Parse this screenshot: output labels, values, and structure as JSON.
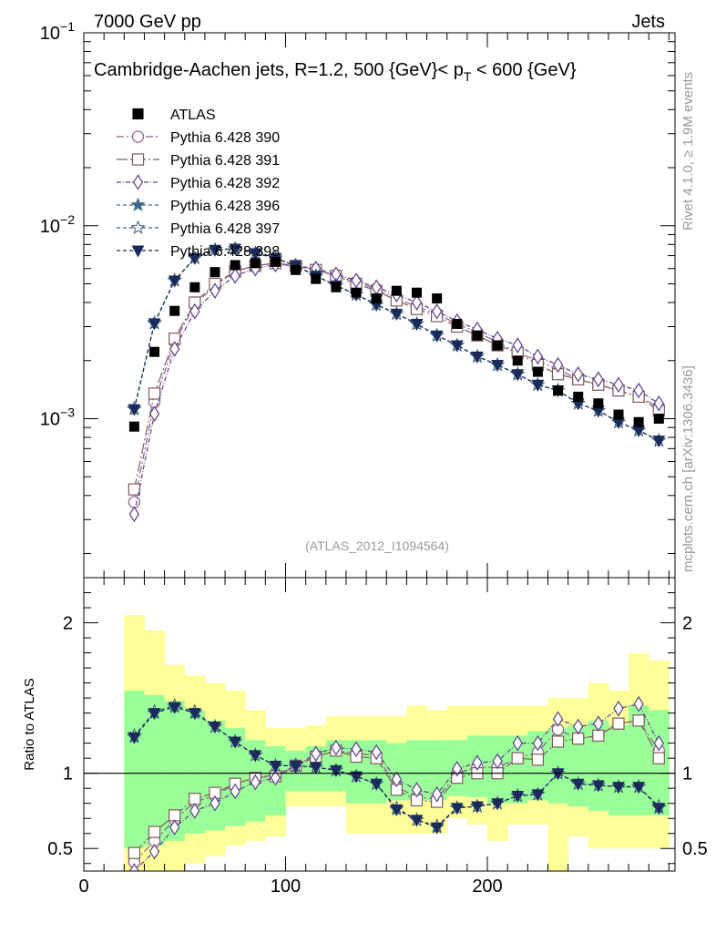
{
  "header": {
    "left": "7000 GeV pp",
    "right": "Jets"
  },
  "side_labels": {
    "rivet": "Rivet 4.1.0, ≥ 1.9M events",
    "mcplots": "mcplots.cern.ch [arXiv:1306.3436]"
  },
  "chart_data": {
    "type": "scatter",
    "title": "Cambridge-Aachen jets, R=1.2, 500 {GeV}< p_T < 600 {GeV}",
    "title_main": "Cambridge-Aachen jets, R=1.2, 500 {GeV}< p",
    "title_sub": "T",
    "title_tail": " < 600 {GeV}",
    "analysis_id": "(ATLAS_2012_I1094564)",
    "xlabel": "",
    "xlim": [
      0,
      293
    ],
    "xticks": [
      0,
      100,
      200
    ],
    "main": {
      "yscale": "log",
      "ylim": [
        0.00015,
        0.1
      ],
      "ytick_labels": [
        {
          "value": 0.1,
          "base": "10",
          "exp": "−1"
        },
        {
          "value": 0.01,
          "base": "10",
          "exp": "−2"
        },
        {
          "value": 0.001,
          "base": "10",
          "exp": "−3"
        }
      ]
    },
    "ratio": {
      "ylabel": "Ratio to ATLAS",
      "ylim": [
        0.35,
        2.3
      ],
      "yticks": [
        0.5,
        1,
        2
      ],
      "ytick_labels": [
        "0.5",
        "1",
        "2"
      ],
      "band_edges": [
        20,
        30,
        40,
        50,
        60,
        70,
        80,
        90,
        100,
        110,
        120,
        130,
        140,
        150,
        160,
        170,
        180,
        190,
        200,
        210,
        220,
        230,
        240,
        250,
        260,
        270,
        280,
        290
      ],
      "band_yellow_lo": [
        0.3,
        0.3,
        0.33,
        0.4,
        0.45,
        0.52,
        0.55,
        0.58,
        0.78,
        0.78,
        0.78,
        0.6,
        0.6,
        0.6,
        0.6,
        0.6,
        0.7,
        0.66,
        0.55,
        0.66,
        0.66,
        0.3,
        0.58,
        0.5,
        0.5,
        0.5,
        0.5
      ],
      "band_yellow_hi": [
        2.05,
        1.95,
        1.72,
        1.65,
        1.6,
        1.55,
        1.42,
        1.3,
        1.3,
        1.32,
        1.38,
        1.38,
        1.38,
        1.38,
        1.45,
        1.42,
        1.45,
        1.45,
        1.45,
        1.45,
        1.45,
        1.5,
        1.5,
        1.6,
        1.55,
        1.8,
        1.75
      ],
      "band_green_lo": [
        0.5,
        0.52,
        0.55,
        0.6,
        0.62,
        0.65,
        0.68,
        0.72,
        0.88,
        0.88,
        0.88,
        0.8,
        0.8,
        0.82,
        0.82,
        0.82,
        0.85,
        0.84,
        0.8,
        0.8,
        0.82,
        0.8,
        0.78,
        0.75,
        0.72,
        0.72,
        0.72
      ],
      "band_green_hi": [
        1.55,
        1.52,
        1.48,
        1.42,
        1.35,
        1.3,
        1.22,
        1.18,
        1.15,
        1.18,
        1.22,
        1.22,
        1.22,
        1.2,
        1.22,
        1.22,
        1.22,
        1.25,
        1.25,
        1.25,
        1.28,
        1.3,
        1.32,
        1.35,
        1.32,
        1.45,
        1.42
      ]
    },
    "x": [
      25,
      35,
      45,
      55,
      65,
      75,
      85,
      95,
      105,
      115,
      125,
      135,
      145,
      155,
      165,
      175,
      185,
      195,
      205,
      215,
      225,
      235,
      245,
      255,
      265,
      275,
      285
    ],
    "data": {
      "name": "ATLAS",
      "values": [
        0.00091,
        0.00222,
        0.00362,
        0.0048,
        0.00575,
        0.00625,
        0.0064,
        0.0065,
        0.0059,
        0.0053,
        0.0048,
        0.0045,
        0.0042,
        0.0046,
        0.0045,
        0.0042,
        0.0031,
        0.0027,
        0.0024,
        0.002,
        0.00175,
        0.0014,
        0.0013,
        0.0012,
        0.00105,
        0.00096,
        0.001
      ]
    },
    "series": [
      {
        "name": "Pythia 6.428 390",
        "marker": "circle",
        "color": "#8a5a8c",
        "dash": "8,3,2,3",
        "values": [
          0.00037,
          0.00122,
          0.0025,
          0.0039,
          0.0049,
          0.0058,
          0.0062,
          0.0064,
          0.0062,
          0.0059,
          0.0055,
          0.0051,
          0.0047,
          0.0042,
          0.0038,
          0.0035,
          0.0031,
          0.0028,
          0.0025,
          0.0022,
          0.002,
          0.0018,
          0.0016,
          0.0015,
          0.0014,
          0.0013,
          0.00115
        ],
        "ratio": [
          0.41,
          0.55,
          0.69,
          0.81,
          0.85,
          0.93,
          0.97,
          0.99,
          1.05,
          1.11,
          1.15,
          1.13,
          1.12,
          0.91,
          0.84,
          0.83,
          1.0,
          1.04,
          1.04,
          1.1,
          1.14,
          1.29,
          1.23,
          1.25,
          1.33,
          1.35,
          1.15
        ]
      },
      {
        "name": "Pythia 6.428 391",
        "marker": "square",
        "color": "#7e5a5a",
        "dash": "12,3,2,3",
        "values": [
          0.00043,
          0.00135,
          0.0026,
          0.004,
          0.005,
          0.0058,
          0.0062,
          0.0064,
          0.0062,
          0.0059,
          0.0055,
          0.005,
          0.0046,
          0.0041,
          0.0037,
          0.0034,
          0.003,
          0.0027,
          0.0024,
          0.0022,
          0.0019,
          0.0017,
          0.0016,
          0.0015,
          0.0014,
          0.0013,
          0.0011
        ],
        "ratio": [
          0.47,
          0.61,
          0.72,
          0.83,
          0.87,
          0.93,
          0.97,
          0.98,
          1.05,
          1.11,
          1.15,
          1.11,
          1.1,
          0.89,
          0.82,
          0.81,
          0.97,
          1.0,
          1.0,
          1.1,
          1.09,
          1.21,
          1.23,
          1.25,
          1.33,
          1.35,
          1.1
        ]
      },
      {
        "name": "Pythia 6.428 392",
        "marker": "diamond",
        "color": "#5a3e8c",
        "dash": "5,2,1,2",
        "values": [
          0.00032,
          0.00106,
          0.0023,
          0.0036,
          0.0046,
          0.0055,
          0.006,
          0.0063,
          0.0062,
          0.006,
          0.0056,
          0.0052,
          0.0048,
          0.0044,
          0.004,
          0.0036,
          0.0032,
          0.0029,
          0.0026,
          0.0024,
          0.0021,
          0.0019,
          0.0017,
          0.0016,
          0.0015,
          0.0014,
          0.0012
        ],
        "ratio": [
          0.35,
          0.48,
          0.64,
          0.75,
          0.8,
          0.88,
          0.94,
          0.97,
          1.05,
          1.13,
          1.17,
          1.16,
          1.14,
          0.96,
          0.89,
          0.86,
          1.03,
          1.07,
          1.08,
          1.2,
          1.2,
          1.36,
          1.31,
          1.33,
          1.43,
          1.46,
          1.2
        ]
      },
      {
        "name": "Pythia 6.428 396",
        "marker": "star",
        "color": "#3e6a8c",
        "dash": "4,3",
        "values": [
          0.00112,
          0.00312,
          0.0052,
          0.0068,
          0.0075,
          0.0076,
          0.0072,
          0.0068,
          0.0062,
          0.0055,
          0.0049,
          0.0044,
          0.0039,
          0.0035,
          0.0031,
          0.0027,
          0.0024,
          0.0021,
          0.0019,
          0.0017,
          0.0015,
          0.0014,
          0.0012,
          0.0011,
          0.00096,
          0.00087,
          0.00077
        ],
        "ratio": [
          1.24,
          1.4,
          1.44,
          1.4,
          1.31,
          1.21,
          1.12,
          1.05,
          1.05,
          1.04,
          1.02,
          0.98,
          0.93,
          0.76,
          0.69,
          0.64,
          0.77,
          0.78,
          0.8,
          0.85,
          0.86,
          1.0,
          0.93,
          0.92,
          0.91,
          0.91,
          0.77
        ]
      },
      {
        "name": "Pythia 6.428 397",
        "marker": "star-open",
        "color": "#3a5a7a",
        "dash": "4,3",
        "values": [
          0.00113,
          0.00314,
          0.00522,
          0.0068,
          0.0075,
          0.0076,
          0.0072,
          0.0068,
          0.0062,
          0.0055,
          0.0049,
          0.0044,
          0.0039,
          0.0035,
          0.0031,
          0.0027,
          0.0024,
          0.0021,
          0.0019,
          0.0017,
          0.0015,
          0.0014,
          0.0012,
          0.0011,
          0.00096,
          0.00087,
          0.00077
        ],
        "ratio": [
          1.25,
          1.41,
          1.45,
          1.41,
          1.31,
          1.21,
          1.12,
          1.05,
          1.05,
          1.04,
          1.02,
          0.98,
          0.93,
          0.77,
          0.69,
          0.65,
          0.77,
          0.78,
          0.8,
          0.85,
          0.86,
          1.0,
          0.93,
          0.92,
          0.91,
          0.91,
          0.78
        ]
      },
      {
        "name": "Pythia 6.428 398",
        "marker": "triangle-down",
        "color": "#1a2a5a",
        "dash": "4,3",
        "values": [
          0.00112,
          0.00312,
          0.0052,
          0.0068,
          0.0075,
          0.0076,
          0.0072,
          0.0068,
          0.0062,
          0.0055,
          0.0049,
          0.0044,
          0.0039,
          0.0035,
          0.0031,
          0.0027,
          0.0024,
          0.0021,
          0.0019,
          0.0017,
          0.0015,
          0.0014,
          0.0012,
          0.0011,
          0.00096,
          0.00087,
          0.00077
        ],
        "ratio": [
          1.24,
          1.4,
          1.44,
          1.4,
          1.31,
          1.21,
          1.12,
          1.05,
          1.05,
          1.04,
          1.02,
          0.98,
          0.93,
          0.76,
          0.69,
          0.64,
          0.77,
          0.78,
          0.8,
          0.85,
          0.86,
          1.0,
          0.93,
          0.92,
          0.91,
          0.91,
          0.77
        ]
      }
    ],
    "colors": {
      "band_yellow": "#ffff99",
      "band_green": "#99ff99",
      "data_marker": "#000000"
    }
  }
}
